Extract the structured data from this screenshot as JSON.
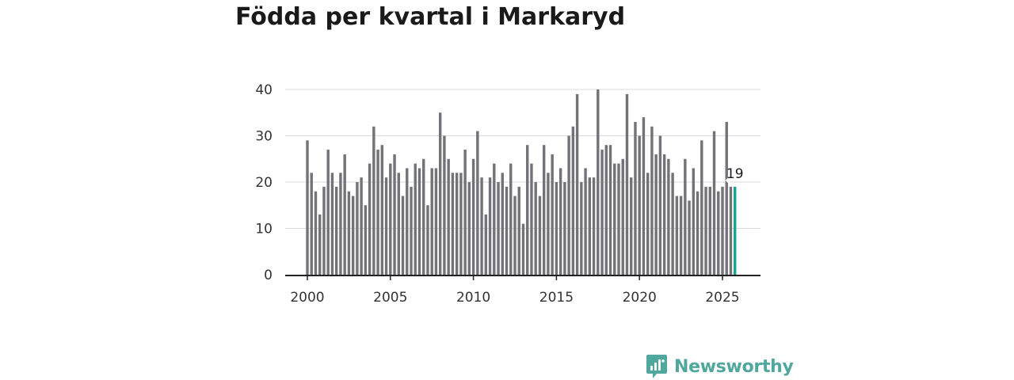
{
  "title": "Födda per kvartal i Markaryd",
  "brand": {
    "name": "Newsworthy"
  },
  "colors": {
    "bar": "#737278",
    "highlight": "#1aa294",
    "brand": "#4fa79d"
  },
  "chart_data": {
    "type": "bar",
    "title": "Födda per kvartal i Markaryd",
    "xlabel": "",
    "ylabel": "",
    "ylim": [
      0,
      40
    ],
    "y_ticks": [
      0,
      10,
      20,
      30,
      40
    ],
    "x_ticks": [
      2000,
      2005,
      2010,
      2015,
      2020,
      2025
    ],
    "x_start": 2000,
    "grid": true,
    "series": [
      {
        "name": "Födda",
        "values": [
          29,
          22,
          18,
          13,
          19,
          27,
          22,
          19,
          22,
          26,
          18,
          17,
          20,
          21,
          15,
          24,
          32,
          27,
          28,
          21,
          24,
          26,
          22,
          17,
          23,
          19,
          24,
          23,
          25,
          15,
          23,
          23,
          35,
          30,
          25,
          22,
          22,
          22,
          27,
          20,
          25,
          31,
          21,
          13,
          21,
          24,
          20,
          22,
          19,
          24,
          17,
          19,
          11,
          28,
          24,
          20,
          17,
          28,
          22,
          26,
          20,
          23,
          20,
          30,
          32,
          39,
          20,
          23,
          21,
          21,
          40,
          27,
          28,
          28,
          24,
          24,
          25,
          39,
          21,
          33,
          30,
          34,
          22,
          32,
          26,
          30,
          26,
          25,
          22,
          17,
          17,
          25,
          16,
          23,
          18,
          29,
          19,
          19,
          31,
          18,
          19,
          33,
          19,
          19
        ]
      }
    ],
    "highlight_label": "19"
  }
}
